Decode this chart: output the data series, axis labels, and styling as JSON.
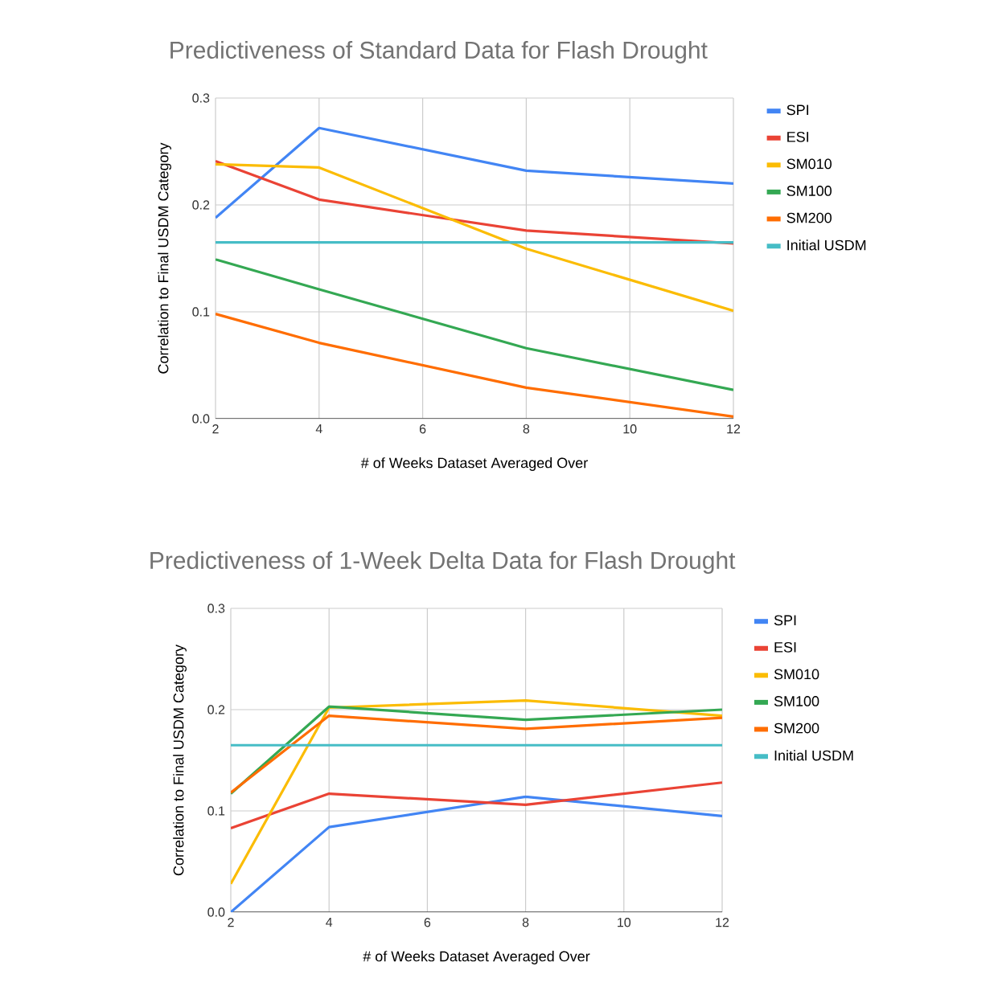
{
  "chart_data": [
    {
      "type": "line",
      "title": "Predictiveness of Standard Data for Flash Drought",
      "xlabel": "# of Weeks Dataset Averaged Over",
      "ylabel": "Correlation to Final USDM Category",
      "x": [
        2,
        4,
        8,
        12
      ],
      "xlim": [
        2,
        12
      ],
      "xticks": [
        2,
        4,
        6,
        8,
        10,
        12
      ],
      "ylim": [
        0,
        0.3
      ],
      "yticks": [
        {
          "value": 0,
          "label": "0.0"
        },
        0.1,
        0.2,
        0.3
      ],
      "grid": true,
      "legend": "right",
      "series": [
        {
          "name": "SPI",
          "color": "#4285f4",
          "values": [
            0.188,
            0.272,
            0.232,
            0.22
          ]
        },
        {
          "name": "ESI",
          "color": "#ea4335",
          "values": [
            0.241,
            0.205,
            0.176,
            0.164
          ]
        },
        {
          "name": "SM010",
          "color": "#fbbc04",
          "values": [
            0.238,
            0.235,
            0.159,
            0.101
          ]
        },
        {
          "name": "SM100",
          "color": "#34a853",
          "values": [
            0.149,
            0.121,
            0.066,
            0.027
          ]
        },
        {
          "name": "SM200",
          "color": "#ff6d01",
          "values": [
            0.098,
            0.071,
            0.029,
            0.002
          ]
        },
        {
          "name": "Initial USDM",
          "color": "#46bdc6",
          "values": [
            0.165,
            0.165,
            0.165,
            0.165
          ]
        }
      ]
    },
    {
      "type": "line",
      "title": "Predictiveness of 1-Week Delta Data for Flash Drought",
      "xlabel": "# of Weeks Dataset Averaged Over",
      "ylabel": "Correlation to Final USDM Category",
      "x": [
        2,
        4,
        8,
        12
      ],
      "xlim": [
        2,
        12
      ],
      "xticks": [
        2,
        4,
        6,
        8,
        10,
        12
      ],
      "ylim": [
        0,
        0.3
      ],
      "yticks": [
        {
          "value": 0,
          "label": "0.0"
        },
        0.1,
        0.2,
        0.3
      ],
      "grid": true,
      "legend": "right",
      "series": [
        {
          "name": "SPI",
          "color": "#4285f4",
          "values": [
            0.0,
            0.084,
            0.114,
            0.095
          ]
        },
        {
          "name": "ESI",
          "color": "#ea4335",
          "values": [
            0.083,
            0.117,
            0.106,
            0.128
          ]
        },
        {
          "name": "SM010",
          "color": "#fbbc04",
          "values": [
            0.028,
            0.202,
            0.209,
            0.194
          ]
        },
        {
          "name": "SM100",
          "color": "#34a853",
          "values": [
            0.117,
            0.203,
            0.19,
            0.2
          ]
        },
        {
          "name": "SM200",
          "color": "#ff6d01",
          "values": [
            0.118,
            0.194,
            0.181,
            0.192
          ]
        },
        {
          "name": "Initial USDM",
          "color": "#46bdc6",
          "values": [
            0.165,
            0.165,
            0.165,
            0.165
          ]
        }
      ]
    }
  ]
}
